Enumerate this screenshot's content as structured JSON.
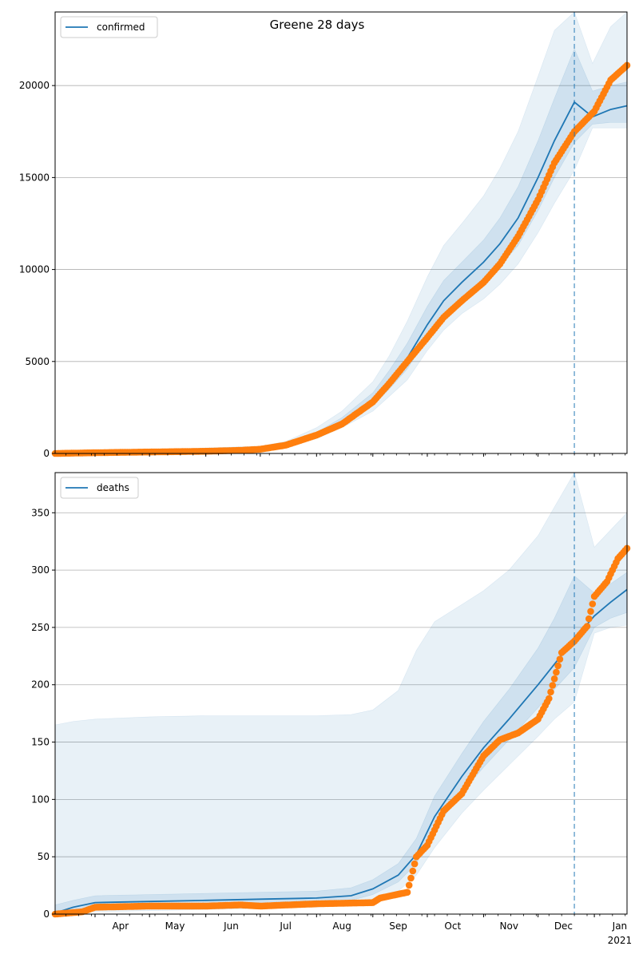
{
  "title": "Greene 28 days",
  "colors": {
    "model": "#1f77b4",
    "observed": "#ff7f0e",
    "grid": "#b0b0b0"
  },
  "x_months": [
    "Apr",
    "May",
    "Jun",
    "Jul",
    "Aug",
    "Sep",
    "Oct",
    "Nov",
    "Dec",
    "Jan"
  ],
  "x_year_label": "2021",
  "chart_data": [
    {
      "type": "line",
      "name": "confirmed",
      "legend": "top-left",
      "grid": "y",
      "x_range": [
        "2020-03-10",
        "2021-01-19"
      ],
      "ylim": [
        0,
        24000
      ],
      "yticks": [
        "0",
        "5000",
        "10000",
        "15000",
        "20000"
      ],
      "forecast_start": "2020-12-21",
      "model_series": {
        "x": [
          "2020-03-10",
          "2020-04-01",
          "2020-05-01",
          "2020-06-01",
          "2020-07-01",
          "2020-07-15",
          "2020-08-01",
          "2020-08-15",
          "2020-09-01",
          "2020-09-10",
          "2020-09-20",
          "2020-10-01",
          "2020-10-10",
          "2020-10-20",
          "2020-11-01",
          "2020-11-10",
          "2020-11-20",
          "2020-12-01",
          "2020-12-10",
          "2020-12-21",
          "2020-12-31",
          "2021-01-10",
          "2021-01-19"
        ],
        "median": [
          0,
          60,
          110,
          180,
          260,
          450,
          1000,
          1700,
          2900,
          3900,
          5200,
          7000,
          8300,
          9300,
          10400,
          11400,
          12800,
          15000,
          17000,
          19100,
          18300,
          18700,
          18900
        ],
        "band_inner": {
          "lower": [
            0,
            50,
            100,
            160,
            230,
            400,
            900,
            1550,
            2600,
            3500,
            4600,
            6300,
            7500,
            8400,
            9300,
            10200,
            11300,
            13200,
            15000,
            16900,
            17900,
            18000,
            18000
          ],
          "upper": [
            50,
            80,
            130,
            210,
            300,
            520,
            1150,
            1950,
            3300,
            4500,
            6000,
            8000,
            9400,
            10400,
            11600,
            12800,
            14500,
            17000,
            19300,
            22000,
            19700,
            20000,
            20200
          ]
        },
        "band_outer": {
          "lower": [
            0,
            40,
            90,
            140,
            200,
            350,
            800,
            1400,
            2300,
            3100,
            4000,
            5600,
            6700,
            7600,
            8400,
            9200,
            10300,
            12000,
            13600,
            15400,
            17700,
            17700,
            17700
          ],
          "upper": [
            150,
            150,
            200,
            300,
            400,
            650,
            1400,
            2300,
            3900,
            5300,
            7200,
            9600,
            11300,
            12500,
            14000,
            15500,
            17500,
            20500,
            23000,
            24000,
            21200,
            23200,
            24000
          ]
        }
      },
      "observed": {
        "x": [
          "2020-03-10",
          "2020-04-01",
          "2020-05-01",
          "2020-06-01",
          "2020-06-20",
          "2020-07-01",
          "2020-07-15",
          "2020-08-01",
          "2020-08-15",
          "2020-09-01",
          "2020-09-10",
          "2020-09-20",
          "2020-10-01",
          "2020-10-10",
          "2020-10-20",
          "2020-11-01",
          "2020-11-10",
          "2020-11-20",
          "2020-12-01",
          "2020-12-10",
          "2020-12-21",
          "2021-01-01",
          "2021-01-10",
          "2021-01-19"
        ],
        "y": [
          0,
          40,
          80,
          120,
          170,
          230,
          450,
          1000,
          1600,
          2800,
          3800,
          5000,
          6300,
          7400,
          8300,
          9300,
          10300,
          11800,
          13800,
          15800,
          17500,
          18600,
          20300,
          21100
        ]
      }
    },
    {
      "type": "line",
      "name": "deaths",
      "legend": "top-left",
      "grid": "y",
      "x_range": [
        "2020-03-10",
        "2021-01-19"
      ],
      "ylim": [
        0,
        385
      ],
      "yticks": [
        "0",
        "50",
        "100",
        "150",
        "200",
        "250",
        "300",
        "350"
      ],
      "forecast_start": "2020-12-21",
      "model_series": {
        "x": [
          "2020-03-10",
          "2020-03-20",
          "2020-04-01",
          "2020-05-01",
          "2020-06-01",
          "2020-07-01",
          "2020-08-01",
          "2020-08-20",
          "2020-09-01",
          "2020-09-15",
          "2020-09-25",
          "2020-10-05",
          "2020-10-20",
          "2020-11-01",
          "2020-11-15",
          "2020-12-01",
          "2020-12-10",
          "2020-12-21",
          "2021-01-01",
          "2021-01-10",
          "2021-01-19"
        ],
        "median": [
          1,
          6,
          10,
          11,
          12,
          13,
          14,
          16,
          22,
          34,
          52,
          85,
          120,
          145,
          170,
          200,
          218,
          240,
          260,
          272,
          283
        ],
        "band_inner": {
          "lower": [
            0,
            3,
            6,
            7,
            8,
            9,
            10,
            12,
            17,
            28,
            44,
            74,
            106,
            128,
            152,
            180,
            196,
            215,
            250,
            258,
            263
          ],
          "upper": [
            8,
            12,
            16,
            17,
            18,
            19,
            20,
            23,
            30,
            44,
            66,
            103,
            140,
            168,
            196,
            232,
            258,
            295,
            280,
            288,
            298
          ]
        },
        "band_outer": {
          "lower": [
            0,
            1,
            2,
            3,
            4,
            5,
            6,
            8,
            12,
            20,
            34,
            58,
            88,
            108,
            130,
            155,
            170,
            185,
            245,
            250,
            252
          ],
          "upper": [
            165,
            168,
            170,
            172,
            173,
            173,
            173,
            174,
            178,
            195,
            230,
            255,
            270,
            282,
            300,
            330,
            355,
            385,
            320,
            335,
            350
          ]
        }
      },
      "observed": {
        "x": [
          "2020-03-10",
          "2020-03-25",
          "2020-04-01",
          "2020-05-01",
          "2020-06-01",
          "2020-06-20",
          "2020-07-01",
          "2020-08-01",
          "2020-09-01",
          "2020-09-05",
          "2020-09-20",
          "2020-09-25",
          "2020-10-01",
          "2020-10-10",
          "2020-10-20",
          "2020-11-01",
          "2020-11-10",
          "2020-11-20",
          "2020-12-01",
          "2020-12-07",
          "2020-12-14",
          "2020-12-21",
          "2020-12-28",
          "2021-01-01",
          "2021-01-08",
          "2021-01-14",
          "2021-01-19"
        ],
        "y": [
          0,
          2,
          6,
          7,
          7,
          8,
          7,
          9,
          10,
          14,
          19,
          50,
          60,
          90,
          105,
          138,
          152,
          158,
          170,
          188,
          228,
          238,
          251,
          277,
          290,
          310,
          319
        ]
      }
    }
  ]
}
